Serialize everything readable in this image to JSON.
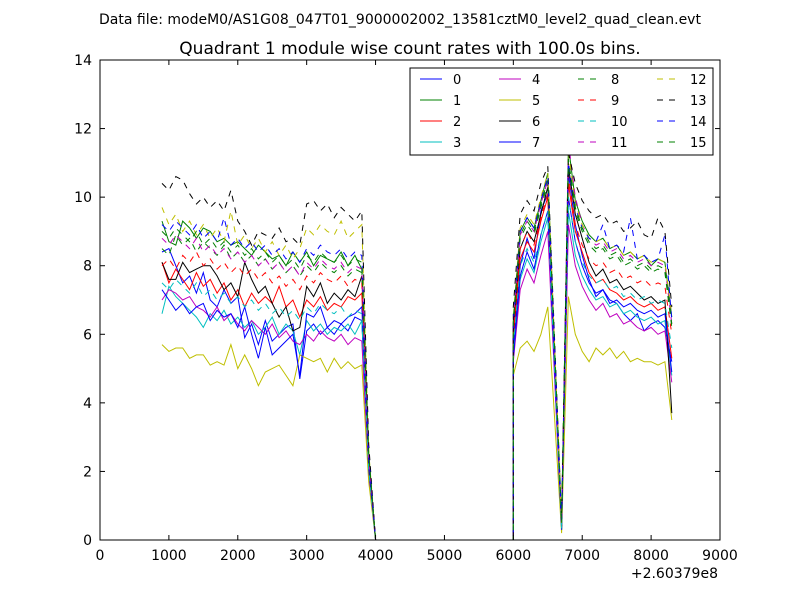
{
  "suptitle": "Data file: modeM0/AS1G08_047T01_9000002002_13581cztM0_level2_quad_clean.evt",
  "chart_data": {
    "type": "line",
    "title": "Quadrant 1 module wise count rates with 100.0s bins.",
    "xlabel": "",
    "ylabel": "",
    "x_offset_label": "+2.60379e8",
    "xlim": [
      0,
      9000
    ],
    "ylim": [
      0,
      14
    ],
    "xticks": [
      0,
      1000,
      2000,
      3000,
      4000,
      5000,
      6000,
      7000,
      8000,
      9000
    ],
    "yticks": [
      0,
      2,
      4,
      6,
      8,
      10,
      12,
      14
    ],
    "grid": false,
    "legend_position": "top-right",
    "segments_x": [
      [
        900,
        1000,
        1100,
        1200,
        1300,
        1400,
        1500,
        1600,
        1700,
        1800,
        1900,
        2000,
        2100,
        2200,
        2300,
        2400,
        2500,
        2600,
        2700,
        2800,
        2900,
        3000,
        3100,
        3200,
        3300,
        3400,
        3500,
        3600,
        3700,
        3800,
        3900,
        4000
      ],
      [
        6000,
        6100,
        6200,
        6300,
        6400,
        6500
      ],
      [
        6700,
        6800,
        6900,
        7000,
        7100,
        7200,
        7300,
        7400,
        7500,
        7600,
        7700,
        7800,
        7900,
        8000,
        8100,
        8200,
        8300
      ]
    ],
    "flat_segment": {
      "from": 4000,
      "to": 6000,
      "value": 0
    },
    "series": [
      {
        "name": "0",
        "color": "#0000ff",
        "dash": "solid",
        "segments": [
          [
            8.4,
            8.5,
            8.0,
            7.5,
            7.7,
            7.2,
            7.8,
            7.0,
            6.8,
            7.3,
            6.9,
            7.1,
            5.9,
            6.3,
            5.7,
            6.4,
            5.8,
            6.0,
            6.2,
            6.3,
            4.7,
            6.1,
            6.3,
            6.0,
            6.2,
            6.0,
            6.3,
            6.1,
            6.5,
            6.4,
            2.2,
            0.0
          ],
          [
            5.6,
            8.0,
            8.8,
            8.2,
            9.6,
            10.1
          ],
          [
            0.3,
            10.7,
            9.2,
            8.3,
            7.6,
            7.1,
            7.3,
            7.0,
            6.9,
            6.6,
            6.4,
            6.6,
            6.1,
            6.3,
            6.4,
            6.2,
            5.2
          ]
        ]
      },
      {
        "name": "1",
        "color": "#008000",
        "dash": "solid",
        "segments": [
          [
            9.3,
            8.7,
            8.6,
            9.3,
            9.1,
            8.8,
            9.1,
            9.0,
            8.7,
            8.8,
            8.6,
            8.7,
            8.5,
            8.3,
            8.6,
            8.4,
            8.2,
            8.3,
            8.0,
            8.4,
            8.1,
            8.4,
            8.0,
            8.3,
            8.2,
            8.1,
            8.4,
            8.0,
            8.3,
            7.9,
            2.5,
            0.0
          ],
          [
            6.3,
            9.0,
            9.4,
            9.1,
            9.9,
            10.7
          ],
          [
            0.5,
            11.5,
            9.9,
            9.3,
            8.9,
            8.7,
            8.8,
            8.5,
            8.6,
            8.3,
            8.4,
            8.2,
            8.3,
            8.0,
            8.2,
            8.1,
            6.5
          ]
        ]
      },
      {
        "name": "2",
        "color": "#ff0000",
        "dash": "solid",
        "segments": [
          [
            8.1,
            7.5,
            7.9,
            7.6,
            7.3,
            7.8,
            7.4,
            7.6,
            7.2,
            7.5,
            7.0,
            7.3,
            6.8,
            7.2,
            6.9,
            7.1,
            6.9,
            7.4,
            6.8,
            7.0,
            6.5,
            7.0,
            6.8,
            7.1,
            6.7,
            6.9,
            6.8,
            7.1,
            7.0,
            7.2,
            2.3,
            0.0
          ],
          [
            5.9,
            8.2,
            8.7,
            8.4,
            9.3,
            10.0
          ],
          [
            0.4,
            10.4,
            9.0,
            8.4,
            7.8,
            7.5,
            7.6,
            7.3,
            7.2,
            7.0,
            7.1,
            6.9,
            6.8,
            6.9,
            6.7,
            6.8,
            5.3
          ]
        ]
      },
      {
        "name": "3",
        "color": "#00bfbf",
        "dash": "solid",
        "segments": [
          [
            6.6,
            7.4,
            7.1,
            6.9,
            6.7,
            6.5,
            6.2,
            6.6,
            6.4,
            6.7,
            6.3,
            6.5,
            6.2,
            6.4,
            6.0,
            6.2,
            6.5,
            6.0,
            6.3,
            6.1,
            5.4,
            6.4,
            6.1,
            6.3,
            6.0,
            6.2,
            6.1,
            6.3,
            6.0,
            6.4,
            2.0,
            0.0
          ],
          [
            5.4,
            7.6,
            8.2,
            7.8,
            8.7,
            9.4
          ],
          [
            0.3,
            9.6,
            8.3,
            7.7,
            7.3,
            7.0,
            7.1,
            6.8,
            6.9,
            6.6,
            6.7,
            6.5,
            6.4,
            6.5,
            6.3,
            6.4,
            4.8
          ]
        ]
      },
      {
        "name": "4",
        "color": "#bf00bf",
        "dash": "solid",
        "segments": [
          [
            7.0,
            7.3,
            7.2,
            7.0,
            7.1,
            6.8,
            6.7,
            6.5,
            6.8,
            6.4,
            6.6,
            6.3,
            6.1,
            6.4,
            6.2,
            6.0,
            6.3,
            5.9,
            6.1,
            5.8,
            5.7,
            6.0,
            5.8,
            6.1,
            5.9,
            5.8,
            6.0,
            5.7,
            5.9,
            5.8,
            1.9,
            0.0
          ],
          [
            5.2,
            7.3,
            7.9,
            7.5,
            8.3,
            9.0
          ],
          [
            0.3,
            9.2,
            8.0,
            7.4,
            7.0,
            6.7,
            6.9,
            6.5,
            6.6,
            6.3,
            6.4,
            6.2,
            6.1,
            6.2,
            6.0,
            6.1,
            4.6
          ]
        ]
      },
      {
        "name": "5",
        "color": "#bfbf00",
        "dash": "solid",
        "segments": [
          [
            5.7,
            5.5,
            5.6,
            5.6,
            5.3,
            5.4,
            5.4,
            5.1,
            5.2,
            5.1,
            5.7,
            5.0,
            5.4,
            5.0,
            4.5,
            4.9,
            5.0,
            5.1,
            4.8,
            4.5,
            5.4,
            5.3,
            5.2,
            5.3,
            4.9,
            5.3,
            5.0,
            5.2,
            5.0,
            5.1,
            1.7,
            0.0
          ],
          [
            4.8,
            5.6,
            5.8,
            5.5,
            6.0,
            6.8
          ],
          [
            0.2,
            7.1,
            6.0,
            5.5,
            5.2,
            5.6,
            5.4,
            5.6,
            5.3,
            5.5,
            5.2,
            5.3,
            5.2,
            5.2,
            5.1,
            5.2,
            3.5
          ]
        ]
      },
      {
        "name": "6",
        "color": "#000000",
        "dash": "solid",
        "segments": [
          [
            8.1,
            7.6,
            7.6,
            8.1,
            7.8,
            7.9,
            8.0,
            8.0,
            7.7,
            7.3,
            7.5,
            7.1,
            8.1,
            7.6,
            7.2,
            7.4,
            6.9,
            6.5,
            6.8,
            6.1,
            6.2,
            7.4,
            7.1,
            7.5,
            6.9,
            7.2,
            7.0,
            7.3,
            7.1,
            7.7,
            2.4,
            0.0
          ],
          [
            6.1,
            8.5,
            9.0,
            8.7,
            9.5,
            10.3
          ],
          [
            0.4,
            10.9,
            9.5,
            8.8,
            8.1,
            7.7,
            7.9,
            7.5,
            7.6,
            7.3,
            7.4,
            7.2,
            7.0,
            7.1,
            6.9,
            7.0,
            3.7
          ]
        ]
      },
      {
        "name": "7",
        "color": "#0000ff",
        "dash": "solid",
        "segments": [
          [
            7.3,
            7.0,
            6.7,
            6.9,
            6.6,
            6.8,
            6.9,
            6.4,
            6.7,
            6.5,
            6.6,
            6.2,
            6.8,
            6.0,
            5.3,
            6.2,
            5.4,
            5.6,
            5.8,
            6.0,
            4.8,
            6.6,
            6.5,
            6.8,
            6.2,
            6.4,
            6.3,
            6.5,
            6.6,
            6.8,
            2.1,
            0.0
          ],
          [
            5.3,
            7.7,
            8.4,
            7.9,
            8.9,
            9.6
          ],
          [
            0.3,
            10.0,
            8.7,
            8.0,
            7.5,
            7.2,
            7.3,
            6.9,
            7.0,
            6.8,
            6.9,
            6.7,
            6.6,
            6.7,
            6.5,
            6.6,
            4.9
          ]
        ]
      },
      {
        "name": "8",
        "color": "#008000",
        "dash": "dashed",
        "segments": [
          [
            8.5,
            8.3,
            8.9,
            8.6,
            8.8,
            8.4,
            8.7,
            8.5,
            8.3,
            8.6,
            8.2,
            8.4,
            8.1,
            8.3,
            8.0,
            8.2,
            7.9,
            8.1,
            7.8,
            8.0,
            7.7,
            8.0,
            7.8,
            8.1,
            7.9,
            7.8,
            8.0,
            7.7,
            7.9,
            7.8,
            2.4,
            0.0
          ],
          [
            6.2,
            8.8,
            9.2,
            8.9,
            9.7,
            10.4
          ],
          [
            0.5,
            11.0,
            9.6,
            9.0,
            8.6,
            8.4,
            8.5,
            8.2,
            8.3,
            8.0,
            8.1,
            7.9,
            8.0,
            7.8,
            7.9,
            7.8,
            6.2
          ]
        ]
      },
      {
        "name": "9",
        "color": "#ff0000",
        "dash": "dashed",
        "segments": [
          [
            8.0,
            8.2,
            7.9,
            8.3,
            8.1,
            8.4,
            8.0,
            8.2,
            7.9,
            8.1,
            7.8,
            8.0,
            7.7,
            7.9,
            7.6,
            7.8,
            7.5,
            7.7,
            7.4,
            7.6,
            7.3,
            7.7,
            7.5,
            7.8,
            7.6,
            7.5,
            7.7,
            7.4,
            7.6,
            7.5,
            2.3,
            0.0
          ],
          [
            6.0,
            8.5,
            9.0,
            8.6,
            9.4,
            10.1
          ],
          [
            0.4,
            10.6,
            9.2,
            8.6,
            8.2,
            8.0,
            8.1,
            7.8,
            7.9,
            7.6,
            7.7,
            7.5,
            7.6,
            7.4,
            7.5,
            7.4,
            6.0
          ]
        ]
      },
      {
        "name": "10",
        "color": "#00bfbf",
        "dash": "dashed",
        "segments": [
          [
            7.5,
            7.3,
            7.6,
            7.4,
            7.2,
            7.5,
            7.1,
            7.3,
            7.0,
            7.2,
            6.9,
            7.1,
            6.8,
            7.0,
            6.7,
            6.9,
            6.6,
            6.8,
            6.5,
            6.7,
            6.4,
            6.8,
            6.6,
            6.9,
            6.7,
            6.6,
            6.8,
            6.5,
            6.7,
            6.6,
            2.1,
            0.0
          ],
          [
            5.6,
            8.0,
            8.5,
            8.1,
            8.9,
            9.6
          ],
          [
            0.3,
            10.0,
            8.7,
            8.1,
            7.7,
            7.5,
            7.6,
            7.3,
            7.4,
            7.1,
            7.2,
            7.0,
            7.1,
            6.9,
            7.0,
            6.9,
            5.6
          ]
        ]
      },
      {
        "name": "11",
        "color": "#bf00bf",
        "dash": "dashed",
        "segments": [
          [
            8.8,
            8.6,
            8.9,
            8.7,
            8.5,
            8.8,
            8.4,
            8.6,
            8.3,
            8.5,
            8.2,
            8.4,
            8.1,
            8.3,
            8.0,
            8.2,
            7.9,
            8.1,
            7.8,
            8.0,
            7.7,
            8.1,
            7.9,
            8.2,
            8.0,
            7.9,
            8.1,
            7.8,
            8.0,
            7.9,
            2.4,
            0.0
          ],
          [
            6.3,
            8.9,
            9.3,
            9.0,
            9.8,
            10.5
          ],
          [
            0.5,
            11.6,
            10.0,
            9.2,
            8.8,
            8.6,
            8.7,
            8.4,
            8.5,
            8.2,
            8.3,
            8.1,
            8.2,
            8.0,
            8.1,
            8.0,
            6.3
          ]
        ]
      },
      {
        "name": "12",
        "color": "#bfbf00",
        "dash": "dashed",
        "segments": [
          [
            9.7,
            9.2,
            9.5,
            9.0,
            9.3,
            8.9,
            9.2,
            8.8,
            9.1,
            8.7,
            9.6,
            8.6,
            8.9,
            8.5,
            8.8,
            8.4,
            8.7,
            8.3,
            8.6,
            8.2,
            8.5,
            9.1,
            8.9,
            9.2,
            9.0,
            8.9,
            9.3,
            8.8,
            9.0,
            9.2,
            2.6,
            0.0
          ],
          [
            6.5,
            9.1,
            9.5,
            9.2,
            10.0,
            10.7
          ],
          [
            0.5,
            11.3,
            9.8,
            9.2,
            8.8,
            8.7,
            8.8,
            8.5,
            8.6,
            8.3,
            8.4,
            8.2,
            8.3,
            8.1,
            8.2,
            8.1,
            6.6
          ]
        ]
      },
      {
        "name": "13",
        "color": "#000000",
        "dash": "dashed",
        "segments": [
          [
            10.4,
            10.2,
            10.6,
            10.5,
            10.1,
            9.8,
            10.0,
            9.7,
            9.9,
            9.6,
            10.2,
            9.3,
            9.0,
            8.6,
            9.0,
            8.9,
            8.8,
            9.1,
            8.7,
            8.8,
            8.6,
            9.8,
            9.9,
            9.6,
            9.8,
            9.4,
            9.7,
            9.5,
            9.3,
            9.6,
            2.8,
            0.0
          ],
          [
            6.8,
            9.5,
            9.9,
            9.6,
            10.4,
            10.9
          ],
          [
            0.6,
            11.3,
            10.4,
            9.9,
            9.6,
            9.4,
            9.5,
            9.2,
            9.3,
            9.0,
            9.1,
            9.3,
            8.9,
            8.8,
            9.4,
            9.0,
            6.8
          ]
        ]
      },
      {
        "name": "14",
        "color": "#0000ff",
        "dash": "dashed",
        "segments": [
          [
            9.2,
            9.0,
            9.3,
            9.1,
            8.9,
            9.2,
            8.8,
            9.0,
            8.7,
            9.4,
            8.6,
            8.8,
            8.5,
            8.7,
            8.4,
            8.6,
            8.3,
            8.5,
            8.2,
            8.4,
            8.1,
            8.5,
            8.3,
            8.6,
            8.4,
            8.3,
            8.5,
            8.2,
            8.4,
            8.3,
            2.5,
            0.0
          ],
          [
            6.4,
            9.0,
            9.4,
            9.1,
            9.9,
            10.6
          ],
          [
            0.5,
            11.0,
            9.7,
            9.1,
            8.8,
            8.7,
            9.2,
            8.5,
            8.6,
            8.4,
            9.4,
            8.2,
            8.3,
            8.1,
            8.2,
            8.9,
            6.4
          ]
        ]
      },
      {
        "name": "15",
        "color": "#008000",
        "dash": "dashed",
        "segments": [
          [
            9.0,
            8.8,
            9.1,
            8.9,
            8.7,
            9.0,
            8.6,
            8.8,
            8.5,
            8.7,
            8.4,
            8.6,
            8.3,
            8.5,
            8.2,
            8.4,
            8.1,
            8.3,
            8.0,
            8.2,
            7.9,
            8.3,
            8.1,
            8.4,
            8.2,
            8.1,
            8.3,
            8.0,
            8.2,
            8.1,
            2.5,
            0.0
          ],
          [
            6.4,
            8.9,
            9.3,
            9.0,
            9.8,
            10.5
          ],
          [
            0.5,
            11.1,
            9.7,
            9.1,
            8.7,
            8.5,
            8.6,
            8.3,
            8.4,
            8.1,
            8.2,
            8.0,
            8.1,
            7.9,
            8.0,
            7.9,
            6.3
          ]
        ]
      }
    ]
  }
}
